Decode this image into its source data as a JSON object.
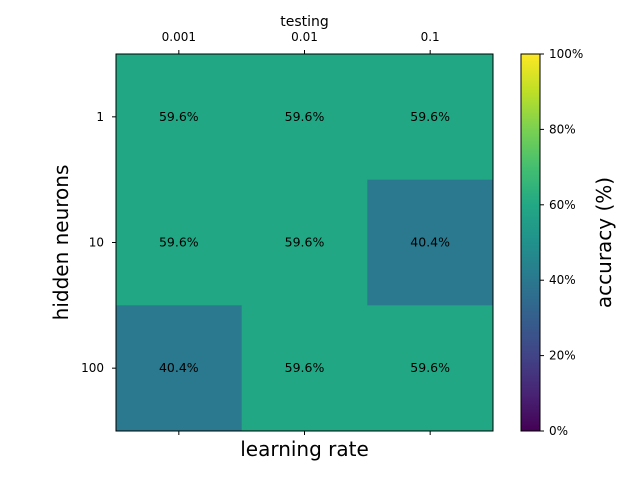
{
  "chart_data": {
    "type": "heatmap",
    "title": "testing",
    "xlabel": "learning rate",
    "ylabel": "hidden neurons",
    "x_tick_labels": [
      "0.001",
      "0.01",
      "0.1"
    ],
    "y_tick_labels": [
      "1",
      "10",
      "100"
    ],
    "x_ticks_position": "top",
    "cells": [
      [
        "59.6%",
        "59.6%",
        "59.6%"
      ],
      [
        "59.6%",
        "59.6%",
        "40.4%"
      ],
      [
        "40.4%",
        "59.6%",
        "59.6%"
      ]
    ],
    "values": [
      [
        59.6,
        59.6,
        59.6
      ],
      [
        59.6,
        59.6,
        40.4
      ],
      [
        40.4,
        59.6,
        59.6
      ]
    ],
    "colorbar": {
      "label": "accuracy (%)",
      "range": [
        0,
        100
      ],
      "colormap": "viridis",
      "tick_labels": [
        "0%",
        "20%",
        "40%",
        "60%",
        "80%",
        "100%"
      ],
      "tick_values": [
        0,
        20,
        40,
        60,
        80,
        100
      ]
    },
    "colors": {
      "cell_high": "#22a884",
      "cell_low": "#2a788e"
    }
  }
}
